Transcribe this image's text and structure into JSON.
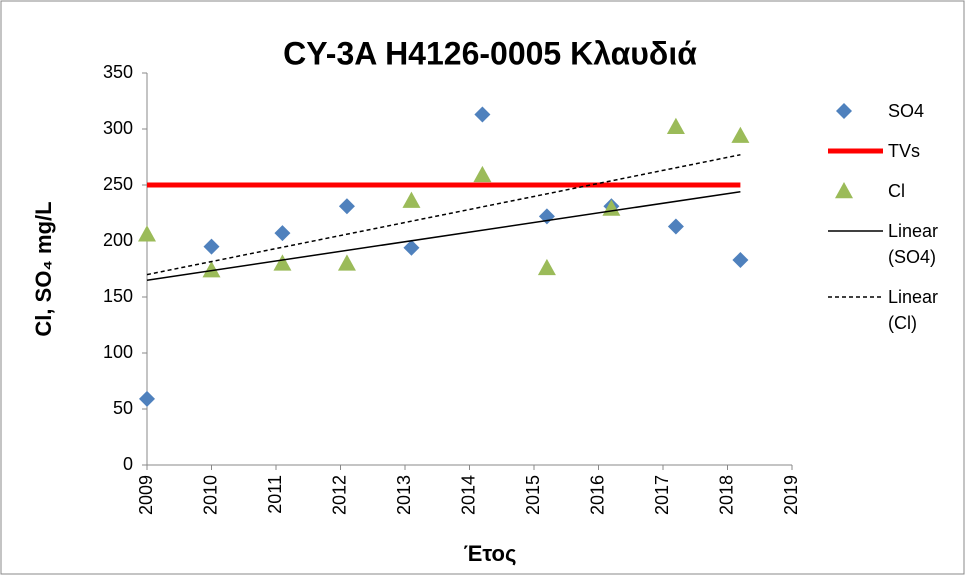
{
  "chart_data": {
    "type": "scatter",
    "title": "CY-3A H4126-0005 Κλαυδιά",
    "x_label": "Έτος",
    "y_label": "Cl, SO₄ mg/L",
    "xlim": [
      2009,
      2019
    ],
    "xticks": [
      2009,
      2010,
      2011,
      2012,
      2013,
      2014,
      2015,
      2016,
      2017,
      2018,
      2019
    ],
    "ylim": [
      0,
      350
    ],
    "yticks": [
      0,
      50,
      100,
      150,
      200,
      250,
      300,
      350
    ],
    "legend": "right",
    "series": [
      {
        "name": "SO4",
        "color": "#4f81bd",
        "marker": "diamond",
        "x": [
          2009.0,
          2010.0,
          2011.1,
          2012.1,
          2013.1,
          2014.2,
          2015.2,
          2016.2,
          2017.2,
          2018.2
        ],
        "values": [
          59,
          195,
          207,
          231,
          194,
          313,
          222,
          231,
          213,
          183
        ]
      },
      {
        "name": "TVs",
        "color": "#ff0000",
        "line": "solid",
        "width": 5,
        "x": [
          2009.0,
          2018.2
        ],
        "values": [
          250,
          250
        ]
      },
      {
        "name": "Cl",
        "color": "#9bbb59",
        "marker": "triangle",
        "x": [
          2009.0,
          2010.0,
          2011.1,
          2012.1,
          2013.1,
          2014.2,
          2015.2,
          2016.2,
          2017.2,
          2018.2
        ],
        "values": [
          206,
          174,
          180,
          180,
          236,
          259,
          176,
          229,
          302,
          294
        ]
      },
      {
        "name": "Linear (SO4)",
        "color": "#000000",
        "line": "solid",
        "width": 1.5,
        "x": [
          2009.0,
          2018.2
        ],
        "values": [
          165,
          244
        ]
      },
      {
        "name": "Linear (Cl)",
        "color": "#000000",
        "line": "dashed",
        "width": 1.5,
        "x": [
          2009.0,
          2018.2
        ],
        "values": [
          170,
          277
        ]
      }
    ]
  }
}
